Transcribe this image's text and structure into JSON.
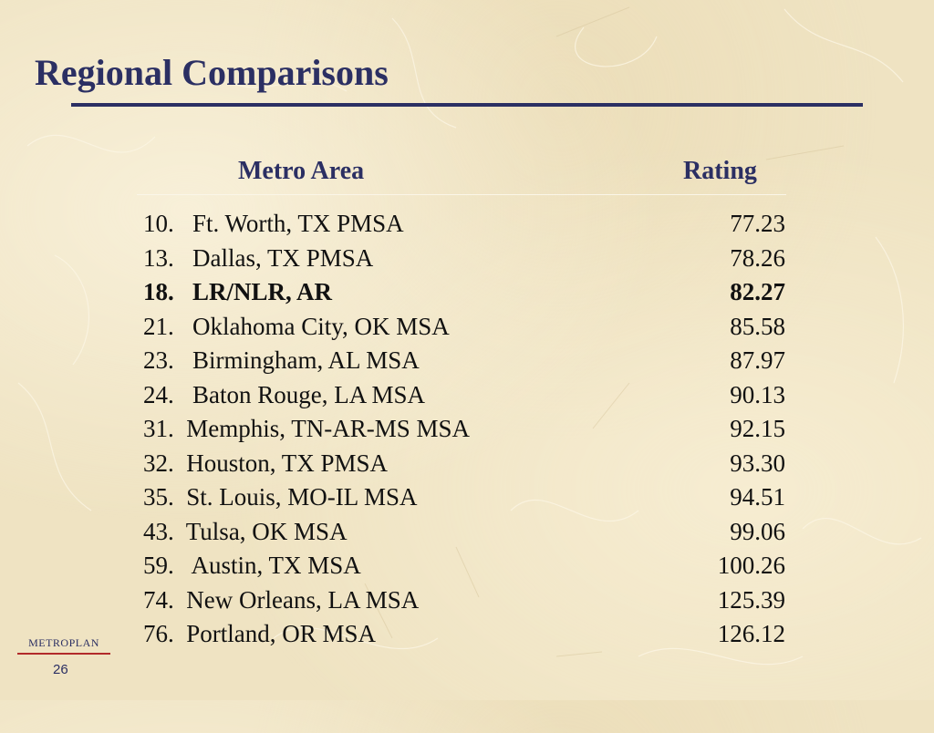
{
  "slide": {
    "title": "Regional Comparisons",
    "page_number": "26",
    "brand": "METROPLAN"
  },
  "table": {
    "headers": {
      "area": "Metro Area",
      "rating": "Rating"
    },
    "rows": [
      {
        "label": "10.   Ft. Worth, TX PMSA",
        "rating": "77.23"
      },
      {
        "label": "13.   Dallas, TX PMSA",
        "rating": "78.26"
      },
      {
        "label": "18.   LR/NLR, AR",
        "rating": "82.27",
        "bold": true
      },
      {
        "label": "21.   Oklahoma City, OK MSA",
        "rating": "85.58"
      },
      {
        "label": "23.   Birmingham, AL MSA",
        "rating": "87.97"
      },
      {
        "label": "24.   Baton Rouge, LA MSA",
        "rating": "90.13"
      },
      {
        "label": "31.  Memphis, TN-AR-MS MSA",
        "rating": "92.15"
      },
      {
        "label": "32.  Houston, TX PMSA",
        "rating": "93.30"
      },
      {
        "label": "35.  St. Louis, MO-IL MSA",
        "rating": "94.51"
      },
      {
        "label": "43.  Tulsa, OK MSA",
        "rating": "99.06"
      },
      {
        "label": "59.   Austin, TX MSA",
        "rating": "100.26"
      },
      {
        "label": "74.  New Orleans, LA MSA",
        "rating": "125.39"
      },
      {
        "label": "76.  Portland, OR MSA",
        "rating": "126.12"
      }
    ]
  },
  "colors": {
    "title": "#2b2f63",
    "background": "#efe3c2",
    "brand_underline": "#b22a2a"
  }
}
